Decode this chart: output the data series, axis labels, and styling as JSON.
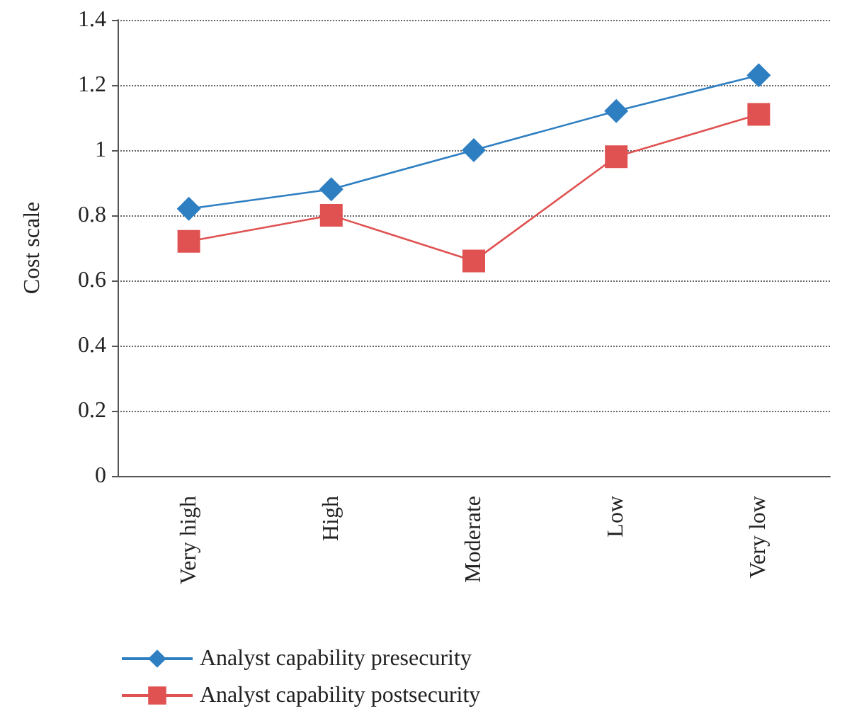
{
  "chart_data": {
    "type": "line",
    "ylabel": "Cost scale",
    "categories": [
      "Very high",
      "High",
      "Moderate",
      "Low",
      "Very low"
    ],
    "series": [
      {
        "name": "Analyst capability presecurity",
        "color": "#2e7fc2",
        "marker": "diamond",
        "values": [
          0.82,
          0.88,
          1.0,
          1.12,
          1.23
        ]
      },
      {
        "name": "Analyst capability postsecurity",
        "color": "#e05252",
        "marker": "square",
        "values": [
          0.72,
          0.8,
          0.66,
          0.98,
          1.11
        ]
      }
    ],
    "ylim": [
      0,
      1.4
    ],
    "yticks": [
      0,
      0.2,
      0.4,
      0.6,
      0.8,
      1,
      1.2,
      1.4
    ],
    "grid": "y",
    "legend": "bottom",
    "line_style": "solid"
  }
}
